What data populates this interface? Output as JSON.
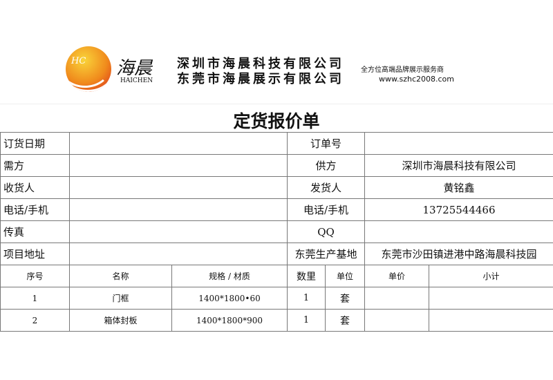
{
  "header": {
    "brand_cn": "海晨",
    "brand_en": "HAICHEN",
    "logo_text": "HC",
    "company_1": "深圳市海晨科技有限公司",
    "company_2": "东莞市海晨展示有限公司",
    "slogan": "全方位高端品牌展示服务商",
    "url": "www.szhc2008.com"
  },
  "title": "定货报价单",
  "info": [
    {
      "l1": "订货日期",
      "v1": "",
      "l2": "订单号",
      "v2": ""
    },
    {
      "l1": "需方",
      "v1": "",
      "l2": "供方",
      "v2": "深圳市海晨科技有限公司"
    },
    {
      "l1": "收货人",
      "v1": "",
      "l2": "发货人",
      "v2": "黄铭鑫"
    },
    {
      "l1": "电话/手机",
      "v1": "",
      "l2": "电话/手机",
      "v2": "13725544466"
    },
    {
      "l1": "传真",
      "v1": "",
      "l2": "QQ",
      "v2": ""
    },
    {
      "l1": "项目地址",
      "v1": "",
      "l2": "东莞生产基地",
      "v2": "东莞市沙田镇进港中路海晨科技园"
    }
  ],
  "columns": [
    "序号",
    "名称",
    "规格 / 材质",
    "数里",
    "单位",
    "单价",
    "小计"
  ],
  "rows": [
    [
      "1",
      "门框",
      "1400*1800•60",
      "1",
      "套",
      "",
      ""
    ],
    [
      "2",
      "箱体封板",
      "1400*1800*900",
      "1",
      "套",
      "",
      ""
    ]
  ]
}
